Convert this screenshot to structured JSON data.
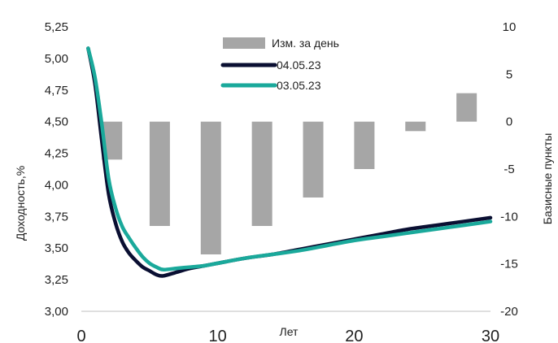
{
  "chart_data": {
    "type": "bar+line",
    "xlabel": "Лет",
    "ylabel_left": "Доходность,%",
    "ylabel_right": "Базисные пункты",
    "xlim": [
      0,
      30
    ],
    "ylim_left": [
      3.0,
      5.25
    ],
    "ylim_right": [
      -20,
      10
    ],
    "x_ticks": [
      "0",
      "10",
      "20",
      "30"
    ],
    "y_left_ticks": [
      "3,00",
      "3,25",
      "3,50",
      "3,75",
      "4,00",
      "4,25",
      "4,50",
      "4,75",
      "5,00",
      "5,25"
    ],
    "y_right_ticks": [
      "-20",
      "-15",
      "-10",
      "-5",
      "0",
      "5",
      "10"
    ],
    "grid": false,
    "legend_position": "top-center",
    "bars": {
      "name": "Изм. за день",
      "color": "#a6a6a6",
      "axis": "right",
      "x": [
        2.25,
        5.75,
        9.5,
        13.25,
        17,
        20.75,
        24.5,
        28.25
      ],
      "values": [
        -4,
        -11,
        -14,
        -11,
        -8,
        -5,
        -1,
        3
      ]
    },
    "series": [
      {
        "name": "04.05.23",
        "color": "#0a0f32",
        "axis": "left",
        "points": [
          [
            0.5,
            5.08
          ],
          [
            1.0,
            4.8
          ],
          [
            1.5,
            4.35
          ],
          [
            2.0,
            3.93
          ],
          [
            2.5,
            3.7
          ],
          [
            3.0,
            3.55
          ],
          [
            3.5,
            3.46
          ],
          [
            4.0,
            3.4
          ],
          [
            4.5,
            3.35
          ],
          [
            5.0,
            3.32
          ],
          [
            5.5,
            3.29
          ],
          [
            6.0,
            3.28
          ],
          [
            7.0,
            3.31
          ],
          [
            8.0,
            3.34
          ],
          [
            9.0,
            3.36
          ],
          [
            10.0,
            3.38
          ],
          [
            12.0,
            3.42
          ],
          [
            14.0,
            3.45
          ],
          [
            16.0,
            3.49
          ],
          [
            18.0,
            3.53
          ],
          [
            20.0,
            3.57
          ],
          [
            22.0,
            3.61
          ],
          [
            24.0,
            3.65
          ],
          [
            26.0,
            3.68
          ],
          [
            28.0,
            3.71
          ],
          [
            30.0,
            3.74
          ]
        ]
      },
      {
        "name": "03.05.23",
        "color": "#1aa99b",
        "axis": "left",
        "points": [
          [
            0.5,
            5.08
          ],
          [
            1.0,
            4.85
          ],
          [
            1.5,
            4.48
          ],
          [
            2.0,
            4.05
          ],
          [
            2.5,
            3.82
          ],
          [
            3.0,
            3.67
          ],
          [
            3.5,
            3.58
          ],
          [
            4.0,
            3.5
          ],
          [
            4.5,
            3.43
          ],
          [
            5.0,
            3.38
          ],
          [
            5.5,
            3.35
          ],
          [
            6.0,
            3.33
          ],
          [
            7.0,
            3.34
          ],
          [
            8.0,
            3.35
          ],
          [
            9.0,
            3.36
          ],
          [
            10.0,
            3.38
          ],
          [
            12.0,
            3.42
          ],
          [
            14.0,
            3.45
          ],
          [
            16.0,
            3.48
          ],
          [
            18.0,
            3.52
          ],
          [
            20.0,
            3.56
          ],
          [
            22.0,
            3.59
          ],
          [
            24.0,
            3.62
          ],
          [
            26.0,
            3.65
          ],
          [
            28.0,
            3.68
          ],
          [
            30.0,
            3.71
          ]
        ]
      }
    ]
  }
}
